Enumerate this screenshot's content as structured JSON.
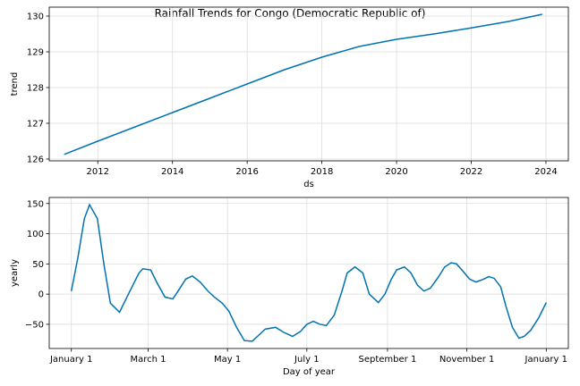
{
  "title": "Rainfall Trends for Congo (Democratic Republic of)",
  "colors": {
    "line": "#0072b2",
    "grid": "#dddddd"
  },
  "chart_data": [
    {
      "type": "line",
      "xlabel": "ds",
      "ylabel": "trend",
      "xlim": [
        2010.7,
        2024.6
      ],
      "ylim": [
        125.95,
        130.25
      ],
      "xticks": [
        2012,
        2014,
        2016,
        2018,
        2020,
        2022,
        2024
      ],
      "xtick_labels": [
        "2012",
        "2014",
        "2016",
        "2018",
        "2020",
        "2022",
        "2024"
      ],
      "yticks": [
        126,
        127,
        128,
        129,
        130
      ],
      "ytick_labels": [
        "126",
        "127",
        "128",
        "129",
        "130"
      ],
      "grid": true,
      "x": [
        2011.1,
        2012.0,
        2013.0,
        2014.0,
        2015.0,
        2016.0,
        2017.0,
        2018.0,
        2019.0,
        2020.0,
        2021.0,
        2022.0,
        2023.0,
        2023.9
      ],
      "y": [
        126.13,
        126.5,
        126.9,
        127.3,
        127.7,
        128.1,
        128.5,
        128.85,
        129.15,
        129.35,
        129.5,
        129.67,
        129.85,
        130.05
      ]
    },
    {
      "type": "line",
      "xlabel": "Day of year",
      "ylabel": "yearly",
      "xlim": [
        -17,
        382
      ],
      "ylim": [
        -90,
        160
      ],
      "xticks": [
        0,
        59,
        120,
        181,
        243,
        304,
        365
      ],
      "xtick_labels": [
        "January 1",
        "March 1",
        "May 1",
        "July 1",
        "September 1",
        "November 1",
        "January 1"
      ],
      "yticks": [
        -50,
        0,
        50,
        100,
        150
      ],
      "ytick_labels": [
        "−50",
        "0",
        "50",
        "100",
        "150"
      ],
      "grid": true,
      "x": [
        0,
        5,
        10,
        14,
        20,
        25,
        30,
        37,
        45,
        52,
        55,
        61,
        66,
        72,
        78,
        82,
        88,
        93,
        99,
        105,
        110,
        116,
        121,
        127,
        133,
        139,
        144,
        149,
        157,
        163,
        170,
        176,
        181,
        186,
        191,
        196,
        202,
        208,
        212,
        218,
        224,
        229,
        236,
        241,
        246,
        250,
        256,
        261,
        266,
        271,
        276,
        282,
        287,
        292,
        296,
        301,
        306,
        311,
        316,
        321,
        325,
        330,
        334,
        339,
        344,
        348,
        353,
        359,
        365
      ],
      "y": [
        5,
        60,
        125,
        148,
        125,
        50,
        -15,
        -30,
        5,
        35,
        42,
        40,
        18,
        -5,
        -8,
        5,
        25,
        30,
        20,
        5,
        -5,
        -15,
        -28,
        -55,
        -77,
        -78,
        -68,
        -58,
        -55,
        -63,
        -70,
        -62,
        -50,
        -45,
        -50,
        -52,
        -35,
        5,
        35,
        45,
        35,
        0,
        -14,
        0,
        25,
        40,
        45,
        35,
        15,
        5,
        10,
        28,
        45,
        52,
        50,
        38,
        25,
        20,
        24,
        29,
        26,
        12,
        -20,
        -55,
        -73,
        -70,
        -60,
        -40,
        -14
      ]
    }
  ]
}
